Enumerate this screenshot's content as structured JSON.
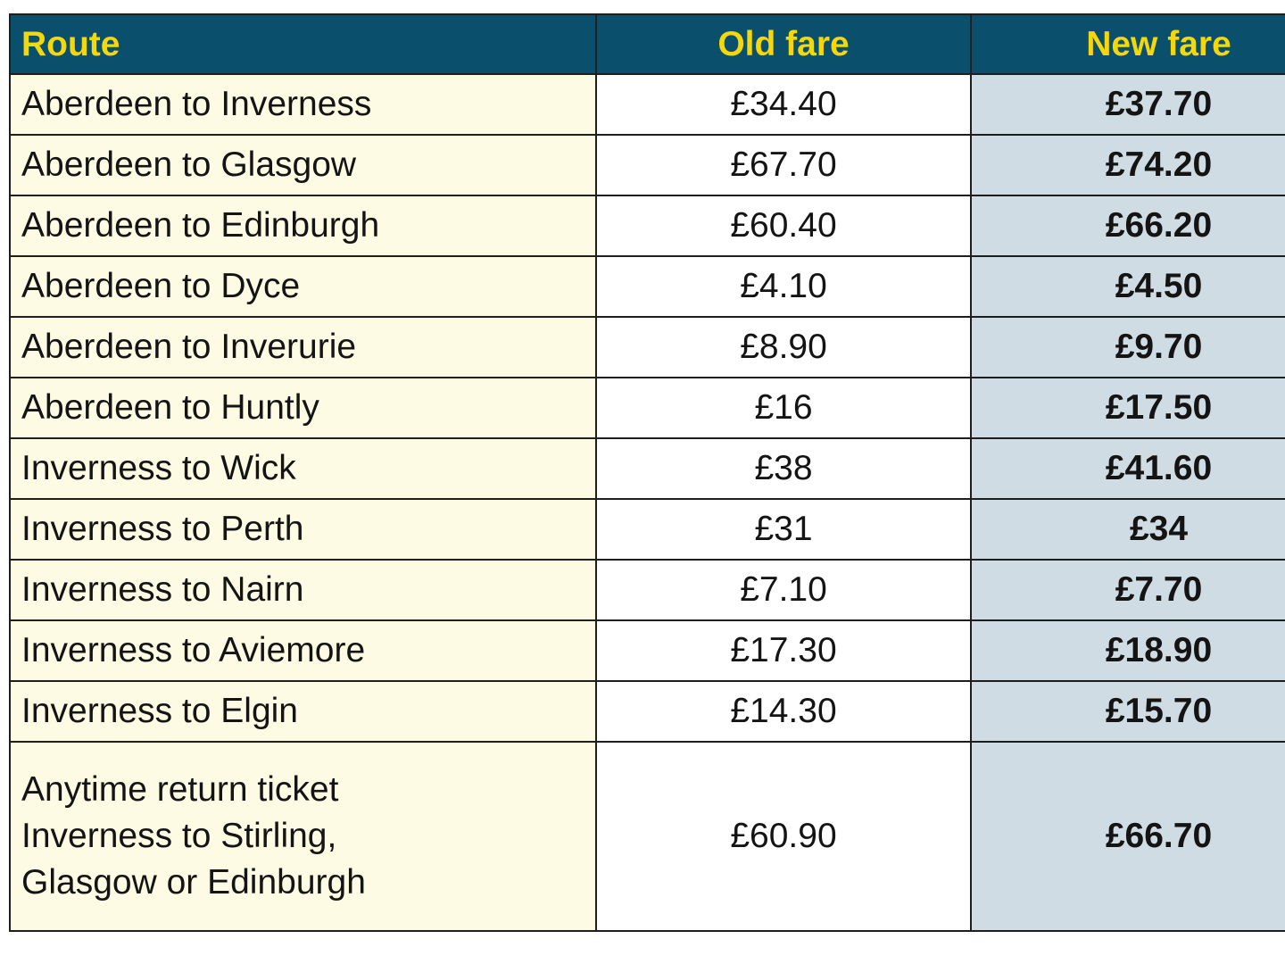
{
  "table": {
    "headers": [
      "Route",
      "Old fare",
      "New fare"
    ],
    "rows": [
      {
        "route": "Aberdeen to Inverness",
        "old_fare": "£34.40",
        "new_fare": "£37.70"
      },
      {
        "route": "Aberdeen to Glasgow",
        "old_fare": "£67.70",
        "new_fare": "£74.20"
      },
      {
        "route": "Aberdeen to Edinburgh",
        "old_fare": "£60.40",
        "new_fare": "£66.20"
      },
      {
        "route": "Aberdeen to Dyce",
        "old_fare": "£4.10",
        "new_fare": "£4.50"
      },
      {
        "route": "Aberdeen to Inverurie",
        "old_fare": "£8.90",
        "new_fare": "£9.70"
      },
      {
        "route": "Aberdeen to Huntly",
        "old_fare": "£16",
        "new_fare": "£17.50"
      },
      {
        "route": "Inverness to Wick",
        "old_fare": "£38",
        "new_fare": "£41.60"
      },
      {
        "route": "Inverness to Perth",
        "old_fare": "£31",
        "new_fare": "£34"
      },
      {
        "route": "Inverness to Nairn",
        "old_fare": "£7.10",
        "new_fare": "£7.70"
      },
      {
        "route": "Inverness to Aviemore",
        "old_fare": "£17.30",
        "new_fare": "£18.90"
      },
      {
        "route": "Inverness to Elgin",
        "old_fare": "£14.30",
        "new_fare": "£15.70"
      },
      {
        "route": "Anytime return ticket\nInverness to Stirling,\nGlasgow or Edinburgh",
        "old_fare": "£60.90",
        "new_fare": "£66.70"
      }
    ]
  }
}
